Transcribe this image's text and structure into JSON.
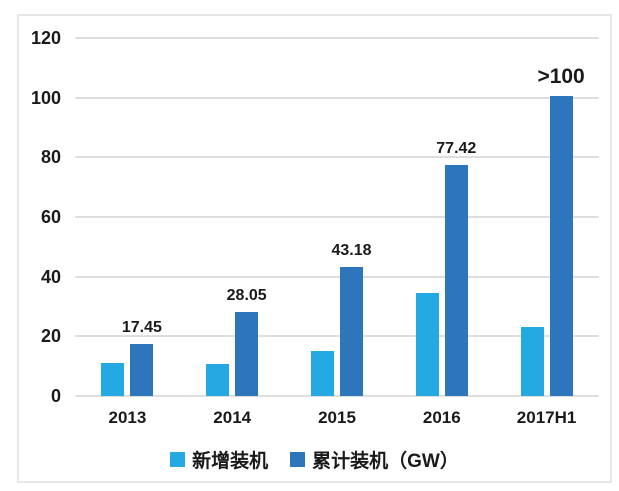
{
  "colors": {
    "light_blue": "#25a9e2",
    "dark_blue": "#2d76bb",
    "grid": "#dedede",
    "text": "#1a1a1a",
    "frame_border": "#e7e7e9",
    "background": "#ffffff"
  },
  "chart_data": {
    "type": "bar",
    "title": "",
    "xlabel": "",
    "ylabel": "",
    "categories": [
      "2013",
      "2014",
      "2015",
      "2016",
      "2017H1"
    ],
    "series": [
      {
        "name": "新增装机",
        "color_key": "light_blue",
        "values": [
          11,
          10.6,
          15.1,
          34.5,
          23
        ],
        "labels": null
      },
      {
        "name": "累计装机（GW）",
        "color_key": "dark_blue",
        "values": [
          17.45,
          28.05,
          43.18,
          77.42,
          100.5
        ],
        "labels": [
          "17.45",
          "28.05",
          "43.18",
          "77.42",
          ">100"
        ],
        "large_labels": [
          false,
          false,
          false,
          false,
          true
        ]
      }
    ],
    "ylim": [
      0,
      120
    ],
    "yticks": [
      0,
      20,
      40,
      60,
      80,
      100,
      120
    ],
    "grid": true,
    "legend_position": "bottom"
  }
}
